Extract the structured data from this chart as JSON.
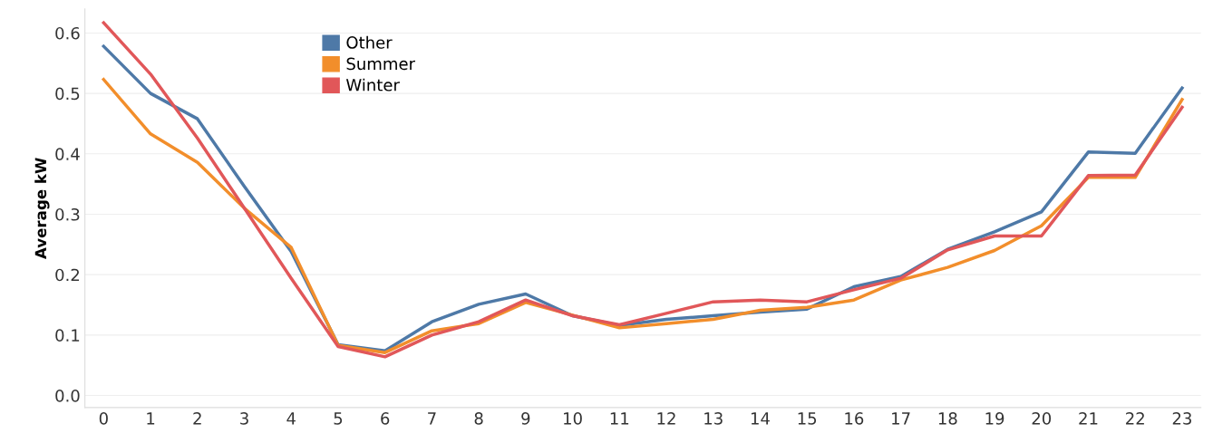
{
  "chart_data": {
    "type": "line",
    "ylabel": "Average kW",
    "categories": [
      "0",
      "1",
      "2",
      "3",
      "4",
      "5",
      "6",
      "7",
      "8",
      "9",
      "10",
      "11",
      "12",
      "13",
      "14",
      "15",
      "16",
      "17",
      "18",
      "19",
      "20",
      "21",
      "22",
      "23"
    ],
    "series": [
      {
        "name": "Other",
        "color": "#4e79a7",
        "values": [
          0.578,
          0.5,
          0.458,
          0.346,
          0.238,
          0.084,
          0.074,
          0.122,
          0.151,
          0.168,
          0.132,
          0.116,
          0.126,
          0.132,
          0.138,
          0.143,
          0.18,
          0.197,
          0.242,
          0.271,
          0.304,
          0.403,
          0.401,
          0.509
        ]
      },
      {
        "name": "Summer",
        "color": "#f28e2b",
        "values": [
          0.523,
          0.433,
          0.386,
          0.31,
          0.245,
          0.083,
          0.071,
          0.107,
          0.119,
          0.154,
          0.133,
          0.112,
          0.119,
          0.126,
          0.141,
          0.146,
          0.158,
          0.191,
          0.212,
          0.24,
          0.281,
          0.361,
          0.361,
          0.49
        ]
      },
      {
        "name": "Winter",
        "color": "#e15759",
        "values": [
          0.617,
          0.532,
          0.426,
          0.31,
          0.194,
          0.081,
          0.064,
          0.1,
          0.122,
          0.158,
          0.132,
          0.117,
          0.136,
          0.155,
          0.158,
          0.155,
          0.175,
          0.194,
          0.241,
          0.264,
          0.264,
          0.364,
          0.365,
          0.477
        ]
      }
    ],
    "ylim": [
      -0.02,
      0.64
    ],
    "yticks": [
      {
        "value": 0,
        "label": "0.0"
      },
      0.1,
      0.2,
      0.3,
      0.4,
      0.5,
      0.6
    ],
    "grid": "y",
    "legend": "top left",
    "marker": "none",
    "line_style": "solid"
  }
}
